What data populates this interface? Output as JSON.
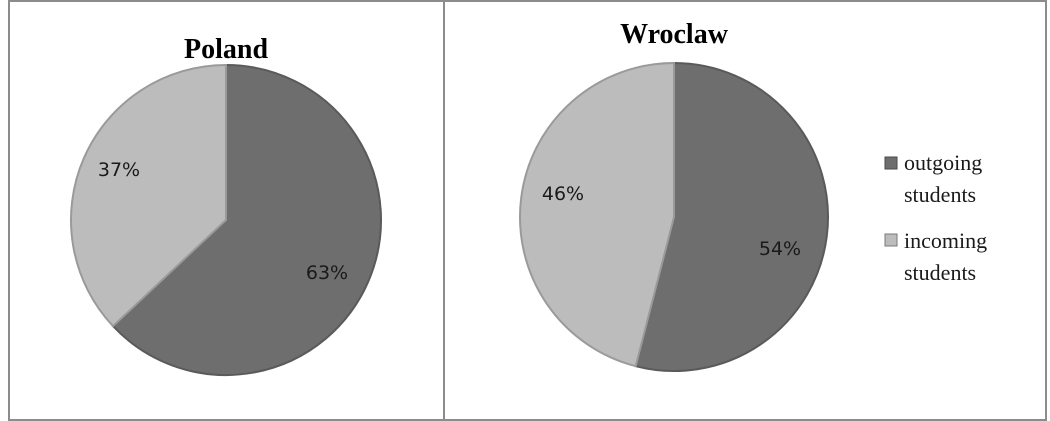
{
  "chart_data": [
    {
      "type": "pie",
      "title": "Poland",
      "categories": [
        "outgoing students",
        "incoming students"
      ],
      "values": [
        63,
        37
      ],
      "labels": [
        "63%",
        "37%"
      ],
      "colors": [
        "#6e6e6e",
        "#bcbcbc"
      ]
    },
    {
      "type": "pie",
      "title": "Wroclaw",
      "categories": [
        "outgoing students",
        "incoming students"
      ],
      "values": [
        54,
        46
      ],
      "labels": [
        "54%",
        "46%"
      ],
      "colors": [
        "#6e6e6e",
        "#bcbcbc"
      ]
    }
  ],
  "legend": {
    "placement": "right",
    "items": [
      {
        "line1": "outgoing",
        "line2": "students",
        "color": "#6e6e6e"
      },
      {
        "line1": "incoming",
        "line2": "students",
        "color": "#bcbcbc"
      }
    ]
  }
}
